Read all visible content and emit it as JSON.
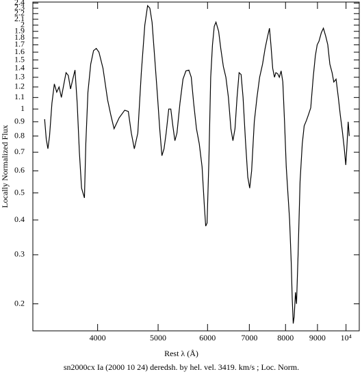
{
  "chart_data": {
    "type": "line",
    "x_label": "Rest λ (Å)",
    "y_label": "Locally Normalized Flux",
    "caption": "sn2000cx Ia (2000 10 24) deredsh. by hel. vel.  3419. km/s ;  Loc. Norm.",
    "xscale": "log",
    "yscale": "log",
    "xlim": [
      3150,
      10500
    ],
    "ylim": [
      0.16,
      2.42
    ],
    "xticks": [
      4000,
      5000,
      6000,
      7000,
      8000,
      9000,
      {
        "value": 10000,
        "label": "10⁴"
      }
    ],
    "yticks": [
      0.2,
      0.3,
      0.4,
      0.5,
      0.6,
      0.7,
      0.8,
      0.9,
      1,
      1.1,
      1.2,
      1.3,
      1.4,
      1.5,
      1.6,
      1.7,
      1.8,
      1.9,
      2,
      2.1,
      2.2,
      2.3,
      2.4
    ],
    "series": [
      {
        "color": "#000000",
        "x": [
          3290,
          3310,
          3330,
          3350,
          3380,
          3410,
          3440,
          3470,
          3500,
          3530,
          3560,
          3590,
          3620,
          3650,
          3680,
          3710,
          3740,
          3770,
          3810,
          3830,
          3860,
          3900,
          3940,
          3980,
          4020,
          4080,
          4150,
          4200,
          4250,
          4330,
          4420,
          4480,
          4530,
          4580,
          4640,
          4700,
          4760,
          4810,
          4850,
          4890,
          4940,
          4990,
          5030,
          5070,
          5110,
          5150,
          5200,
          5240,
          5280,
          5320,
          5360,
          5420,
          5480,
          5540,
          5600,
          5650,
          5700,
          5760,
          5820,
          5880,
          5930,
          5960,
          5990,
          6030,
          6070,
          6110,
          6150,
          6190,
          6250,
          6300,
          6360,
          6420,
          6480,
          6540,
          6590,
          6640,
          6690,
          6740,
          6790,
          6840,
          6900,
          6960,
          7010,
          7060,
          7130,
          7200,
          7270,
          7350,
          7420,
          7480,
          7540,
          7580,
          7630,
          7680,
          7720,
          7770,
          7820,
          7870,
          7920,
          7970,
          8020,
          8070,
          8120,
          8170,
          8200,
          8230,
          8260,
          8300,
          8330,
          8380,
          8440,
          8510,
          8570,
          8640,
          8700,
          8780,
          8860,
          8930,
          8990,
          9050,
          9130,
          9200,
          9280,
          9350,
          9420,
          9500,
          9560,
          9640,
          9720,
          9790,
          9860,
          9930,
          9990,
          10030,
          10080,
          10120
        ],
        "values": [
          0.92,
          0.78,
          0.72,
          0.8,
          1.05,
          1.23,
          1.15,
          1.2,
          1.1,
          1.22,
          1.35,
          1.32,
          1.18,
          1.28,
          1.38,
          1.05,
          0.7,
          0.52,
          0.48,
          0.75,
          1.15,
          1.45,
          1.62,
          1.65,
          1.6,
          1.4,
          1.08,
          0.95,
          0.85,
          0.93,
          0.99,
          0.98,
          0.82,
          0.72,
          0.82,
          1.35,
          2.0,
          2.35,
          2.3,
          2.05,
          1.5,
          1.1,
          0.85,
          0.68,
          0.72,
          0.82,
          1.0,
          1.0,
          0.87,
          0.77,
          0.82,
          1.05,
          1.28,
          1.37,
          1.38,
          1.3,
          1.05,
          0.85,
          0.75,
          0.62,
          0.45,
          0.38,
          0.39,
          0.66,
          1.3,
          1.7,
          1.98,
          2.05,
          1.9,
          1.65,
          1.42,
          1.3,
          1.1,
          0.85,
          0.77,
          0.85,
          1.1,
          1.35,
          1.33,
          1.1,
          0.77,
          0.57,
          0.52,
          0.6,
          0.9,
          1.1,
          1.3,
          1.45,
          1.65,
          1.8,
          1.95,
          1.7,
          1.4,
          1.3,
          1.35,
          1.34,
          1.3,
          1.37,
          1.25,
          0.9,
          0.62,
          0.5,
          0.4,
          0.28,
          0.21,
          0.17,
          0.18,
          0.22,
          0.2,
          0.3,
          0.55,
          0.75,
          0.87,
          0.91,
          0.95,
          1.01,
          1.3,
          1.55,
          1.7,
          1.75,
          1.88,
          1.95,
          1.82,
          1.7,
          1.45,
          1.35,
          1.25,
          1.28,
          1.1,
          0.95,
          0.84,
          0.73,
          0.63,
          0.73,
          0.9,
          0.8
        ]
      }
    ]
  }
}
